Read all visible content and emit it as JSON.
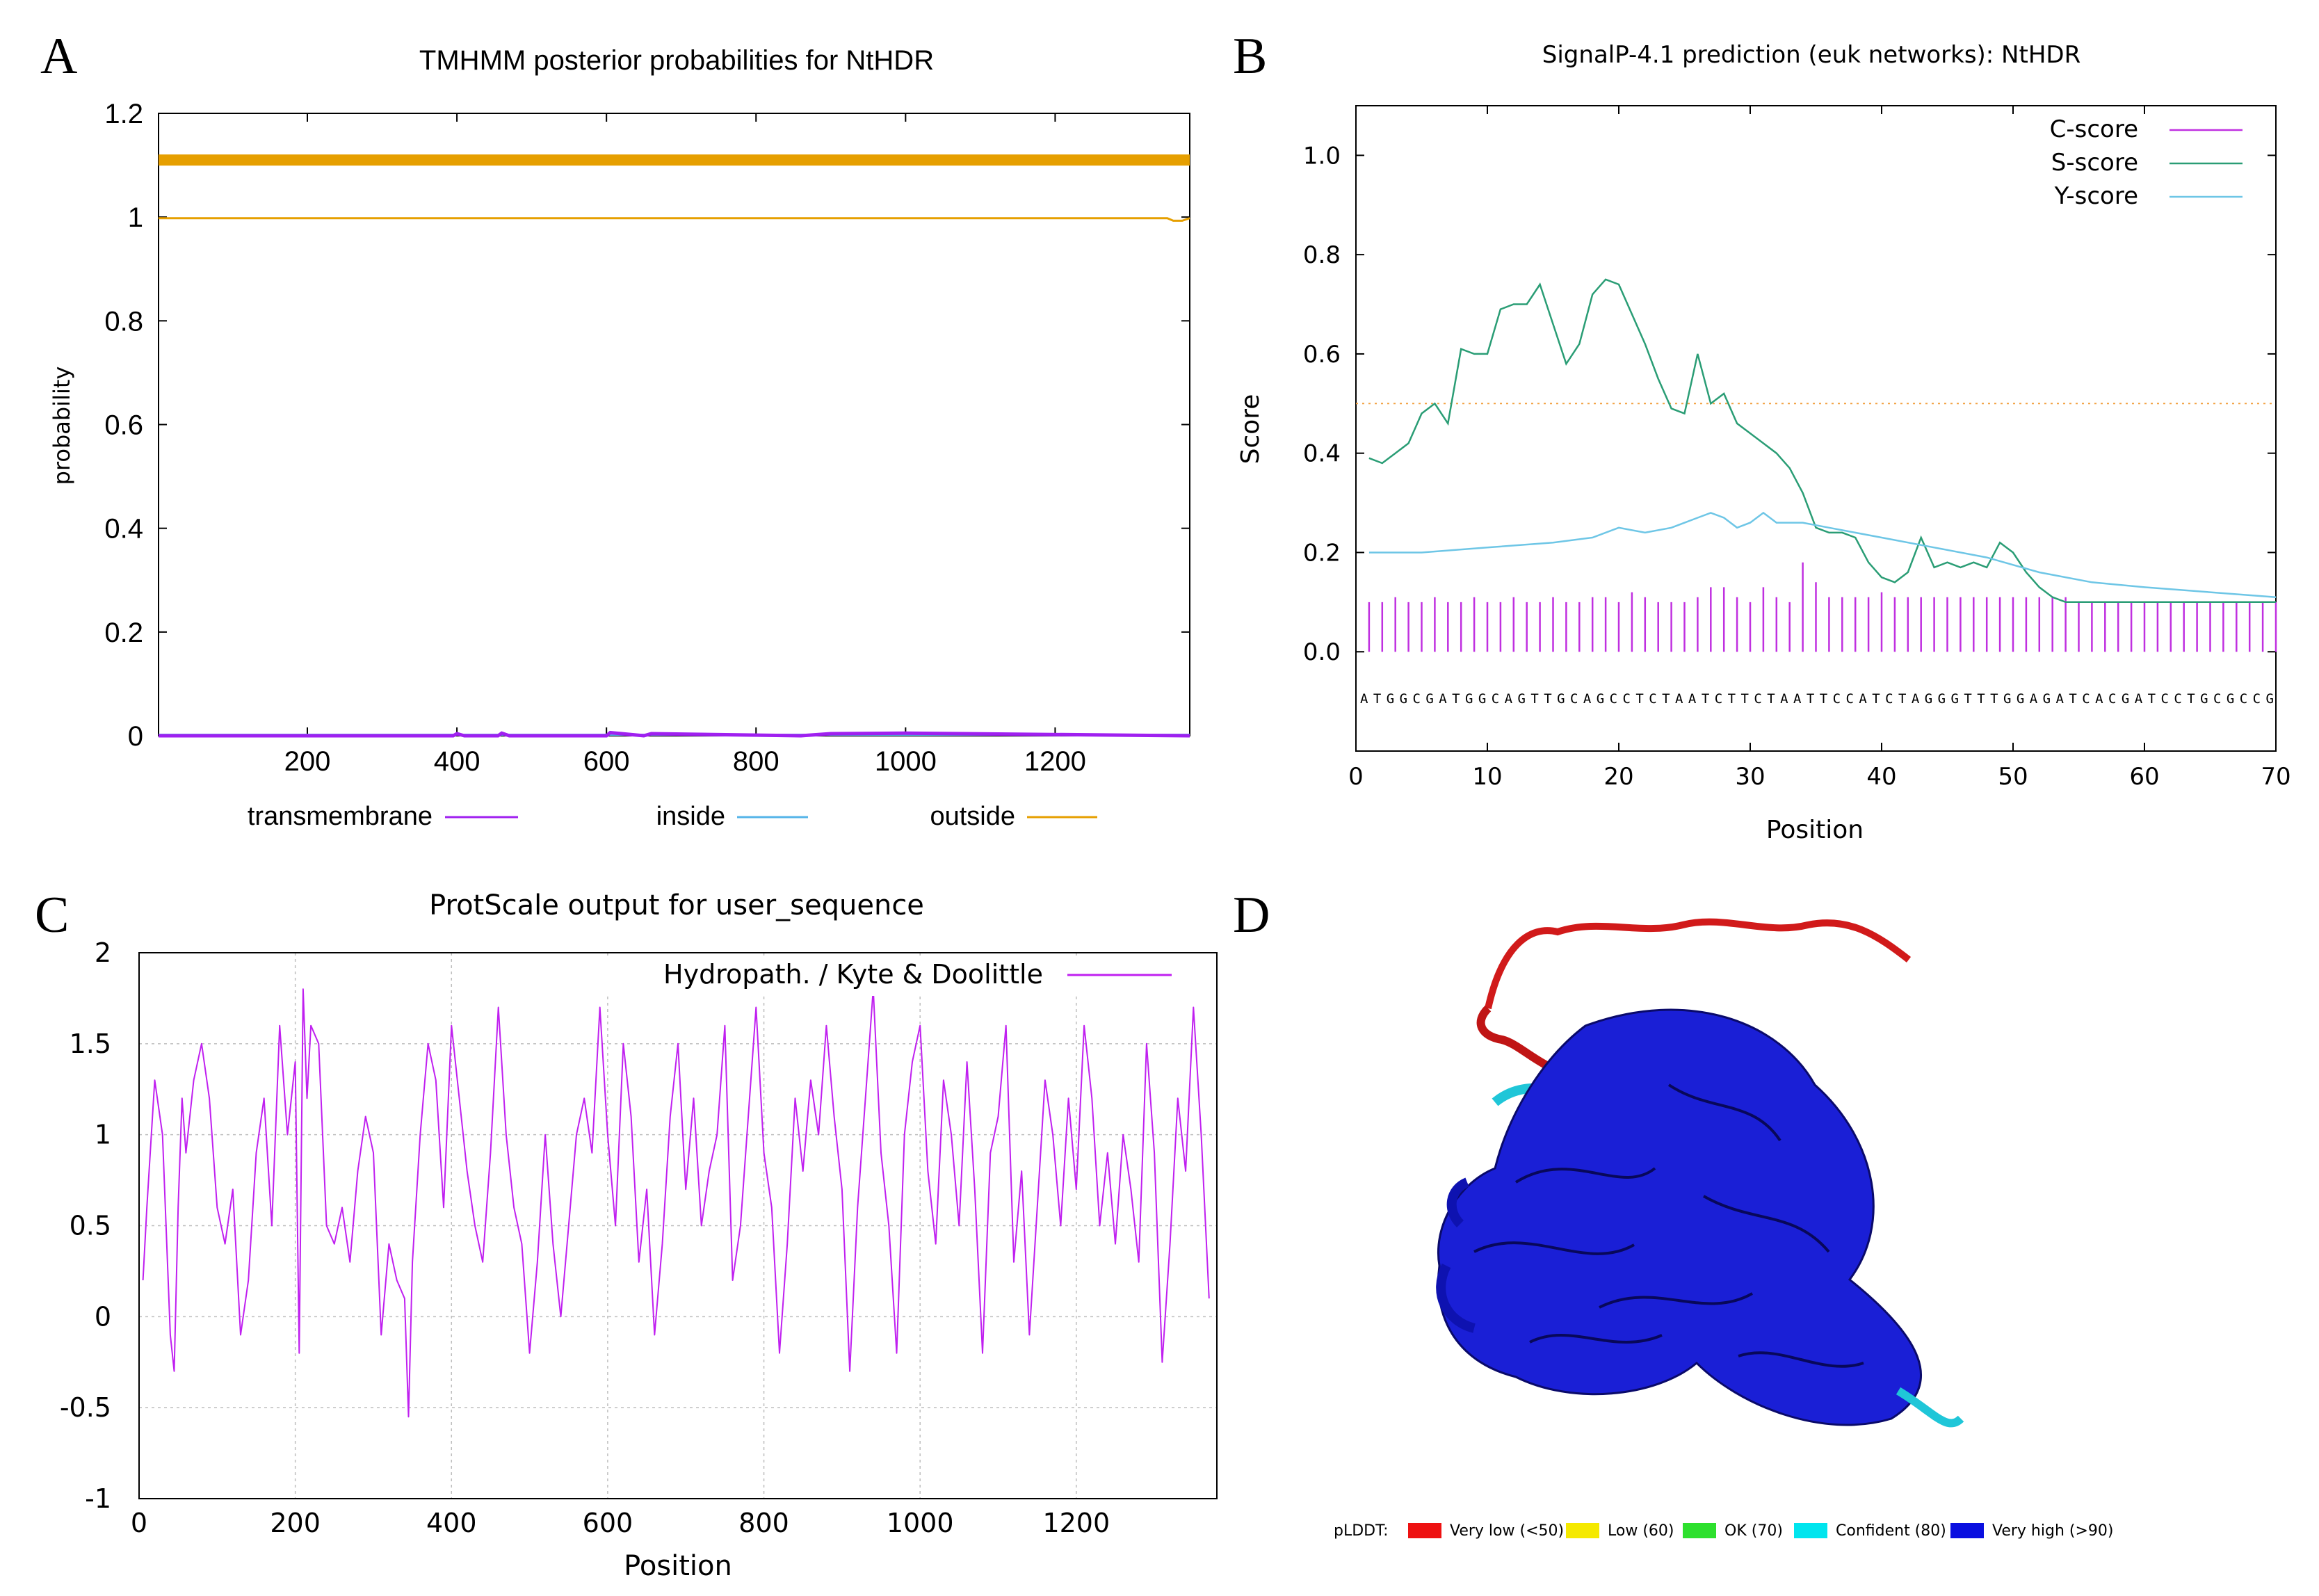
{
  "figure": {
    "panel_labels": [
      "A",
      "B",
      "C",
      "D"
    ]
  },
  "chart_data": [
    {
      "panel": "A",
      "type": "line",
      "title": "TMHMM posterior probabilities for NtHDR",
      "xlabel": "",
      "ylabel": "probability",
      "xlim": [
        1,
        1380
      ],
      "ylim": [
        0,
        1.2
      ],
      "x_ticks": [
        200,
        400,
        600,
        800,
        1000,
        1200
      ],
      "y_ticks": [
        0,
        0.2,
        0.4,
        0.6,
        0.8,
        1,
        1.2
      ],
      "y_tick_labels": [
        "0",
        "0.2",
        "0.4",
        "0.6",
        "0.8",
        "1",
        "1.2"
      ],
      "outside_bar_y": 1.11,
      "series": [
        {
          "name": "transmembrane",
          "color": "#a020f0",
          "x": [
            1,
            395,
            400,
            410,
            455,
            460,
            470,
            600,
            605,
            650,
            660,
            860,
            900,
            1000,
            1380
          ],
          "y": [
            0,
            0,
            0.004,
            0,
            0,
            0.005,
            0,
            0,
            0.006,
            0,
            0.004,
            0,
            0.004,
            0.005,
            0
          ]
        },
        {
          "name": "inside",
          "color": "#56b4e9",
          "x": [
            1,
            1380
          ],
          "y": [
            0.002,
            0.002
          ]
        },
        {
          "name": "outside",
          "color": "#e69f00",
          "x": [
            1,
            1350,
            1358,
            1370,
            1380
          ],
          "y": [
            0.998,
            0.998,
            0.993,
            0.993,
            0.998
          ]
        }
      ]
    },
    {
      "panel": "B",
      "type": "line",
      "title": "SignalP-4.1 prediction (euk networks): NtHDR",
      "xlabel": "Position",
      "ylabel": "Score",
      "xlim": [
        0,
        70
      ],
      "ylim": [
        -0.2,
        1.1
      ],
      "x_ticks": [
        0,
        10,
        20,
        30,
        40,
        50,
        60,
        70
      ],
      "y_ticks": [
        0.0,
        0.2,
        0.4,
        0.6,
        0.8,
        1.0
      ],
      "y_tick_labels": [
        "0.0",
        "0.2",
        "0.4",
        "0.6",
        "0.8",
        "1.0"
      ],
      "threshold": 0.5,
      "sequence": "ATGGCGATGGCAGTTGCAGCCTCTAATCTTCTAATTCCATCTAGGGTTTGGAGATCACGATCCTGCGCCG",
      "c_score": {
        "name": "C-score",
        "color": "#c030e0",
        "x": [
          1,
          2,
          3,
          4,
          5,
          6,
          7,
          8,
          9,
          10,
          11,
          12,
          13,
          14,
          15,
          16,
          17,
          18,
          19,
          20,
          21,
          22,
          23,
          24,
          25,
          26,
          27,
          28,
          29,
          30,
          31,
          32,
          33,
          34,
          35,
          36,
          37,
          38,
          39,
          40,
          41,
          42,
          43,
          44,
          45,
          46,
          47,
          48,
          49,
          50,
          51,
          52,
          53,
          54,
          55,
          56,
          57,
          58,
          59,
          60,
          61,
          62,
          63,
          64,
          65,
          66,
          67,
          68,
          69,
          70
        ],
        "y": [
          0.1,
          0.1,
          0.11,
          0.1,
          0.1,
          0.11,
          0.1,
          0.1,
          0.11,
          0.1,
          0.1,
          0.11,
          0.1,
          0.1,
          0.11,
          0.1,
          0.1,
          0.11,
          0.11,
          0.1,
          0.12,
          0.11,
          0.1,
          0.1,
          0.1,
          0.11,
          0.13,
          0.13,
          0.11,
          0.1,
          0.13,
          0.11,
          0.1,
          0.18,
          0.14,
          0.11,
          0.11,
          0.11,
          0.11,
          0.12,
          0.11,
          0.11,
          0.11,
          0.11,
          0.11,
          0.11,
          0.11,
          0.11,
          0.11,
          0.11,
          0.11,
          0.11,
          0.11,
          0.11,
          0.1,
          0.1,
          0.1,
          0.1,
          0.1,
          0.1,
          0.1,
          0.1,
          0.1,
          0.1,
          0.1,
          0.1,
          0.1,
          0.1,
          0.1,
          0.1
        ]
      },
      "s_score": {
        "name": "S-score",
        "color": "#2a9d75",
        "x": [
          1,
          2,
          3,
          4,
          5,
          6,
          7,
          8,
          9,
          10,
          11,
          12,
          13,
          14,
          15,
          16,
          17,
          18,
          19,
          20,
          21,
          22,
          23,
          24,
          25,
          26,
          27,
          28,
          29,
          30,
          31,
          32,
          33,
          34,
          35,
          36,
          37,
          38,
          39,
          40,
          41,
          42,
          43,
          44,
          45,
          46,
          47,
          48,
          49,
          50,
          51,
          52,
          53,
          54,
          55,
          56,
          57,
          58,
          59,
          60,
          61,
          62,
          63,
          64,
          65,
          66,
          67,
          68,
          69,
          70
        ],
        "y": [
          0.39,
          0.38,
          0.4,
          0.42,
          0.48,
          0.5,
          0.46,
          0.61,
          0.6,
          0.6,
          0.69,
          0.7,
          0.7,
          0.74,
          0.66,
          0.58,
          0.62,
          0.72,
          0.75,
          0.74,
          0.68,
          0.62,
          0.55,
          0.49,
          0.48,
          0.6,
          0.5,
          0.52,
          0.46,
          0.44,
          0.42,
          0.4,
          0.37,
          0.32,
          0.25,
          0.24,
          0.24,
          0.23,
          0.18,
          0.15,
          0.14,
          0.16,
          0.23,
          0.17,
          0.18,
          0.17,
          0.18,
          0.17,
          0.22,
          0.2,
          0.16,
          0.13,
          0.11,
          0.1,
          0.1,
          0.1,
          0.1,
          0.1,
          0.1,
          0.1,
          0.1,
          0.1,
          0.1,
          0.1,
          0.1,
          0.1,
          0.1,
          0.1,
          0.1,
          0.1
        ]
      },
      "y_score": {
        "name": "Y-score",
        "color": "#6ec6e6",
        "x": [
          1,
          5,
          10,
          15,
          18,
          20,
          22,
          24,
          26,
          27,
          28,
          29,
          30,
          31,
          32,
          33,
          34,
          36,
          40,
          44,
          48,
          52,
          56,
          60,
          65,
          70
        ],
        "y": [
          0.2,
          0.2,
          0.21,
          0.22,
          0.23,
          0.25,
          0.24,
          0.25,
          0.27,
          0.28,
          0.27,
          0.25,
          0.26,
          0.28,
          0.26,
          0.26,
          0.26,
          0.25,
          0.23,
          0.21,
          0.19,
          0.16,
          0.14,
          0.13,
          0.12,
          0.11
        ]
      }
    },
    {
      "panel": "C",
      "type": "line",
      "title": "ProtScale output for user_sequence",
      "xlabel": "Position",
      "ylabel": "",
      "xlim": [
        0,
        1380
      ],
      "ylim": [
        -1,
        2
      ],
      "x_ticks": [
        0,
        200,
        400,
        600,
        800,
        1000,
        1200
      ],
      "y_ticks": [
        -1,
        -0.5,
        0,
        0.5,
        1,
        1.5,
        2
      ],
      "y_tick_labels": [
        "-1",
        "-0.5",
        "0",
        "0.5",
        "1",
        "1.5",
        "2"
      ],
      "grid": true,
      "series": [
        {
          "name": "Hydropath. / Kyte & Doolittle",
          "color": "#c020f0",
          "x": [
            5,
            10,
            20,
            30,
            40,
            45,
            50,
            55,
            60,
            70,
            80,
            90,
            100,
            110,
            120,
            130,
            140,
            150,
            160,
            170,
            180,
            190,
            200,
            205,
            210,
            215,
            220,
            230,
            240,
            250,
            260,
            270,
            280,
            290,
            300,
            310,
            320,
            330,
            340,
            345,
            350,
            360,
            370,
            380,
            390,
            400,
            410,
            420,
            430,
            440,
            450,
            460,
            470,
            480,
            490,
            500,
            510,
            520,
            530,
            540,
            550,
            560,
            570,
            580,
            590,
            600,
            610,
            620,
            630,
            640,
            650,
            660,
            670,
            680,
            690,
            700,
            710,
            720,
            730,
            740,
            750,
            760,
            770,
            780,
            790,
            800,
            810,
            820,
            830,
            840,
            850,
            860,
            870,
            880,
            890,
            900,
            910,
            920,
            930,
            940,
            950,
            960,
            970,
            980,
            990,
            1000,
            1010,
            1020,
            1030,
            1040,
            1050,
            1060,
            1070,
            1080,
            1090,
            1100,
            1110,
            1120,
            1130,
            1140,
            1150,
            1160,
            1170,
            1180,
            1190,
            1200,
            1210,
            1220,
            1230,
            1240,
            1250,
            1260,
            1270,
            1280,
            1290,
            1300,
            1310,
            1320,
            1330,
            1340,
            1350,
            1360,
            1370
          ],
          "y": [
            0.2,
            0.6,
            1.3,
            1.0,
            -0.1,
            -0.3,
            0.6,
            1.2,
            0.9,
            1.3,
            1.5,
            1.2,
            0.6,
            0.4,
            0.7,
            -0.1,
            0.2,
            0.9,
            1.2,
            0.5,
            1.6,
            1.0,
            1.4,
            -0.2,
            1.8,
            1.2,
            1.6,
            1.5,
            0.5,
            0.4,
            0.6,
            0.3,
            0.8,
            1.1,
            0.9,
            -0.1,
            0.4,
            0.2,
            0.1,
            -0.55,
            0.3,
            1.0,
            1.5,
            1.3,
            0.6,
            1.6,
            1.2,
            0.8,
            0.5,
            0.3,
            0.9,
            1.7,
            1.0,
            0.6,
            0.4,
            -0.2,
            0.3,
            1.0,
            0.4,
            0.0,
            0.5,
            1.0,
            1.2,
            0.9,
            1.7,
            1.0,
            0.5,
            1.5,
            1.1,
            0.3,
            0.7,
            -0.1,
            0.4,
            1.1,
            1.5,
            0.7,
            1.2,
            0.5,
            0.8,
            1.0,
            1.6,
            0.2,
            0.5,
            1.1,
            1.7,
            0.9,
            0.6,
            -0.2,
            0.4,
            1.2,
            0.8,
            1.3,
            1.0,
            1.6,
            1.1,
            0.7,
            -0.3,
            0.6,
            1.2,
            1.8,
            0.9,
            0.5,
            -0.2,
            1.0,
            1.4,
            1.6,
            0.8,
            0.4,
            1.3,
            1.0,
            0.5,
            1.4,
            0.7,
            -0.2,
            0.9,
            1.1,
            1.6,
            0.3,
            0.8,
            -0.1,
            0.6,
            1.3,
            1.0,
            0.5,
            1.2,
            0.7,
            1.6,
            1.2,
            0.5,
            0.9,
            0.4,
            1.0,
            0.7,
            0.3,
            1.5,
            0.9,
            -0.25,
            0.4,
            1.2,
            0.8,
            1.7,
            1.0,
            0.1
          ]
        }
      ]
    }
  ],
  "panel_d": {
    "legend_title": "pLDDT:",
    "legend": [
      {
        "label": "Very low (<50)",
        "color": "#ee1111"
      },
      {
        "label": "Low (60)",
        "color": "#f5e900"
      },
      {
        "label": "OK (70)",
        "color": "#2ee02e"
      },
      {
        "label": "Confident (80)",
        "color": "#00e5ee"
      },
      {
        "label": "Very high (>90)",
        "color": "#0a0fe0"
      }
    ]
  }
}
